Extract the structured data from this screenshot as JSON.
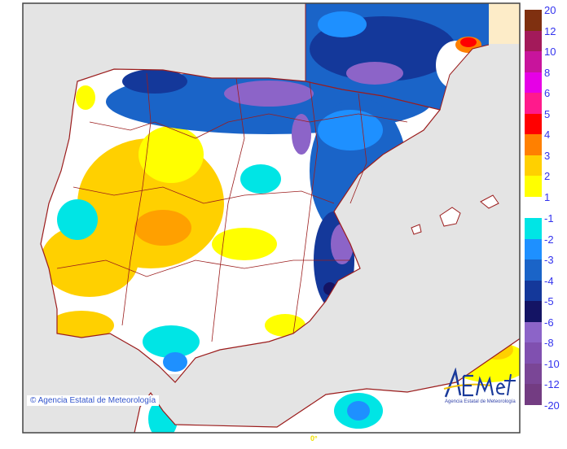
{
  "map": {
    "copyright": "© Agencia Estatal de Meteorología",
    "longitude_label": "0°",
    "logo": {
      "text": "AEMet",
      "subtitle": "Agencia Estatal de Meteorología"
    },
    "colors": {
      "sea": "#e4e4e4",
      "land": "#ffffff",
      "borders": "#9b1c1c",
      "out_of_domain": "#fdecc8"
    }
  },
  "legend": {
    "positive": {
      "labels": [
        "20",
        "12",
        "10",
        "8",
        "6",
        "5",
        "4",
        "3",
        "2",
        "1"
      ],
      "colors": [
        "#7f3010",
        "#a31a5a",
        "#c8149c",
        "#e600e6",
        "#ff1a8c",
        "#ff0000",
        "#ff8000",
        "#ffd000",
        "#ffff00"
      ]
    },
    "negative": {
      "labels": [
        "-1",
        "-2",
        "-3",
        "-4",
        "-5",
        "-6",
        "-8",
        "-10",
        "-12",
        "-20"
      ],
      "colors": [
        "#00e5e5",
        "#1e90ff",
        "#1a64c8",
        "#14389a",
        "#141464",
        "#8c64c8",
        "#8050b0",
        "#7a4696",
        "#733c82"
      ]
    }
  }
}
